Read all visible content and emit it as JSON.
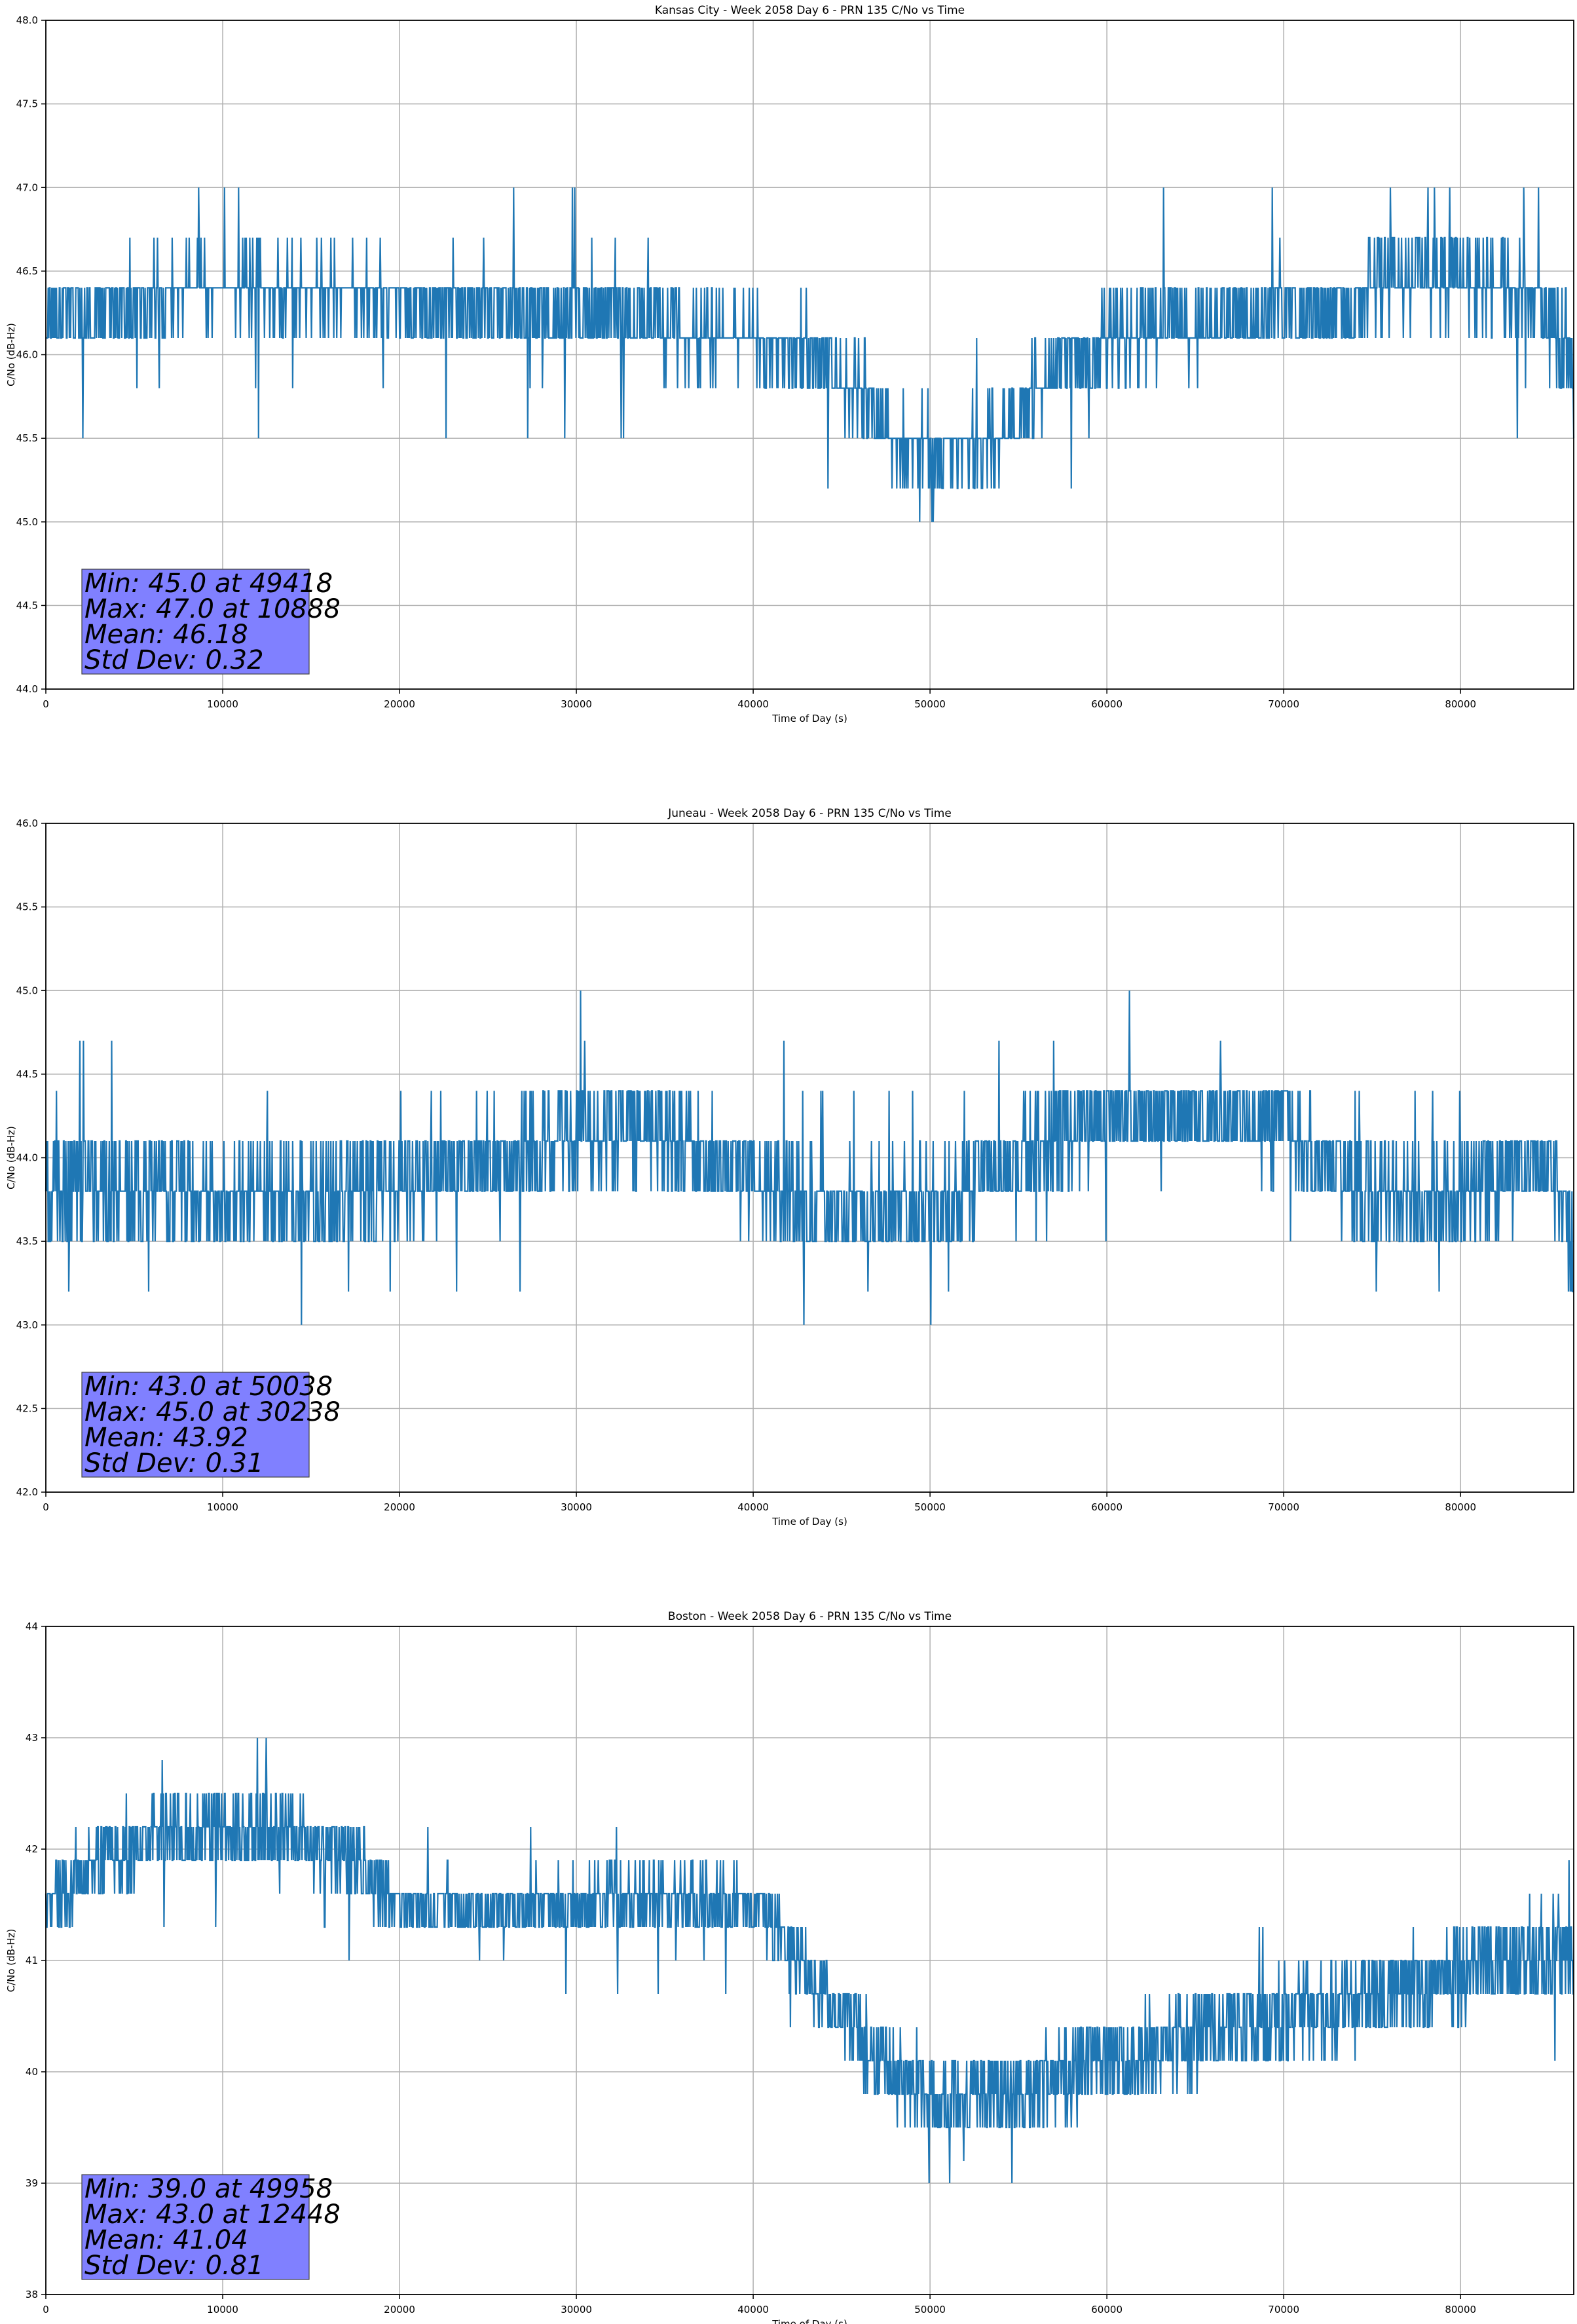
{
  "figure": {
    "colors": {
      "line": "#1f77b4",
      "grid": "#b0b0b0",
      "axes": "#000000",
      "stats_box": "#8080ff",
      "background": "#ffffff"
    }
  },
  "chart_data": [
    {
      "type": "line",
      "title": "Kansas City - Week 2058 Day 6 - PRN 135 C/No vs Time",
      "xlabel": "Time of Day (s)",
      "ylabel": "C/No (dB-Hz)",
      "xlim": [
        0,
        86400
      ],
      "ylim": [
        44.0,
        48.0
      ],
      "xticks": [
        0,
        10000,
        20000,
        30000,
        40000,
        50000,
        60000,
        70000,
        80000
      ],
      "xtick_labels": [
        "0",
        "10000",
        "20000",
        "30000",
        "40000",
        "50000",
        "60000",
        "70000",
        "80000"
      ],
      "yticks": [
        44.0,
        44.5,
        45.0,
        45.5,
        46.0,
        46.5,
        47.0,
        47.5,
        48.0
      ],
      "ytick_labels": [
        "44.0",
        "44.5",
        "45.0",
        "45.5",
        "46.0",
        "46.5",
        "47.0",
        "47.5",
        "48.0"
      ],
      "grid": true,
      "quantization": 0.3,
      "series": [
        {
          "x": [
            0,
            3000,
            8000,
            15000,
            20000,
            25000,
            30000,
            35000,
            40000,
            43000,
            46000,
            48000,
            50000,
            52000,
            54000,
            56000,
            58000,
            60000,
            65000,
            70000,
            73000,
            76000,
            80000,
            84000,
            86000,
            86400
          ],
          "y": [
            46.15,
            46.3,
            46.4,
            46.4,
            46.35,
            46.3,
            46.2,
            46.15,
            46.1,
            46.05,
            45.8,
            45.5,
            45.45,
            45.45,
            45.5,
            45.8,
            46.0,
            46.1,
            46.15,
            46.2,
            46.3,
            46.45,
            46.45,
            46.35,
            46.0,
            45.7
          ],
          "spread": [
            0.15,
            0.15,
            0.15,
            0.15,
            0.15,
            0.15,
            0.15,
            0.15,
            0.15,
            0.15,
            0.2,
            0.15,
            0.15,
            0.15,
            0.15,
            0.2,
            0.15,
            0.15,
            0.15,
            0.15,
            0.15,
            0.15,
            0.15,
            0.15,
            0.2,
            0.2
          ]
        }
      ],
      "extremes": {
        "min": {
          "x": 49418,
          "y": 45.0
        },
        "max": {
          "x": 10888,
          "y": 47.0
        }
      },
      "annotation": [
        "Min: 45.0 at 49418",
        "Max: 47.0 at 10888",
        "Mean: 46.18",
        "Std Dev: 0.32"
      ]
    },
    {
      "type": "line",
      "title": "Juneau - Week 2058 Day 6 - PRN 135 C/No vs Time",
      "xlabel": "Time of Day (s)",
      "ylabel": "C/No (dB-Hz)",
      "xlim": [
        0,
        86400
      ],
      "ylim": [
        42.0,
        46.0
      ],
      "xticks": [
        0,
        10000,
        20000,
        30000,
        40000,
        50000,
        60000,
        70000,
        80000
      ],
      "xtick_labels": [
        "0",
        "10000",
        "20000",
        "30000",
        "40000",
        "50000",
        "60000",
        "70000",
        "80000"
      ],
      "yticks": [
        42.0,
        42.5,
        43.0,
        43.5,
        44.0,
        44.5,
        45.0,
        45.5,
        46.0
      ],
      "ytick_labels": [
        "42.0",
        "42.5",
        "43.0",
        "43.5",
        "44.0",
        "44.5",
        "45.0",
        "45.5",
        "46.0"
      ],
      "grid": true,
      "quantization": 0.3,
      "series": [
        {
          "x": [
            0,
            5000,
            10000,
            15000,
            20000,
            25000,
            30000,
            35000,
            40000,
            45000,
            50000,
            55000,
            60000,
            65000,
            70000,
            74000,
            78000,
            82000,
            85000,
            86400
          ],
          "y": [
            43.8,
            43.85,
            43.75,
            43.75,
            43.85,
            44.0,
            44.15,
            44.15,
            43.85,
            43.7,
            43.7,
            44.0,
            44.25,
            44.25,
            44.2,
            43.8,
            43.7,
            43.85,
            44.0,
            43.4
          ],
          "spread": [
            0.2,
            0.2,
            0.2,
            0.2,
            0.2,
            0.2,
            0.2,
            0.2,
            0.2,
            0.2,
            0.2,
            0.2,
            0.2,
            0.2,
            0.2,
            0.2,
            0.2,
            0.2,
            0.2,
            0.2
          ]
        }
      ],
      "extremes": {
        "min": {
          "x": 50038,
          "y": 43.0
        },
        "max": {
          "x": 30238,
          "y": 45.0
        }
      },
      "annotation": [
        "Min: 43.0 at 50038",
        "Max: 45.0 at 30238",
        "Mean: 43.92",
        "Std Dev: 0.31"
      ]
    },
    {
      "type": "line",
      "title": "Boston - Week 2058 Day 6 - PRN 135 C/No vs Time",
      "xlabel": "Time of Day (s)",
      "ylabel": "C/No (dB-Hz)",
      "xlim": [
        0,
        86400
      ],
      "ylim": [
        38,
        44
      ],
      "xticks": [
        0,
        10000,
        20000,
        30000,
        40000,
        50000,
        60000,
        70000,
        80000
      ],
      "xtick_labels": [
        "0",
        "10000",
        "20000",
        "30000",
        "40000",
        "50000",
        "60000",
        "70000",
        "80000"
      ],
      "yticks": [
        38,
        39,
        40,
        41,
        42,
        43,
        44
      ],
      "ytick_labels": [
        "38",
        "39",
        "40",
        "41",
        "42",
        "43",
        "44"
      ],
      "grid": true,
      "quantization": 0.3,
      "series": [
        {
          "x": [
            0,
            3000,
            6000,
            10000,
            14000,
            18000,
            20000,
            25000,
            30000,
            35000,
            40000,
            42000,
            44000,
            46000,
            48000,
            50000,
            54000,
            58000,
            62000,
            66000,
            70000,
            74000,
            78000,
            82000,
            86000,
            86400
          ],
          "y": [
            41.5,
            41.85,
            42.1,
            42.2,
            42.15,
            41.8,
            41.5,
            41.45,
            41.5,
            41.55,
            41.5,
            41.1,
            40.7,
            40.3,
            40.0,
            39.7,
            39.75,
            40.0,
            40.2,
            40.35,
            40.45,
            40.6,
            40.8,
            41.0,
            41.1,
            40.8
          ],
          "spread": [
            0.2,
            0.25,
            0.25,
            0.25,
            0.25,
            0.25,
            0.15,
            0.15,
            0.2,
            0.2,
            0.2,
            0.2,
            0.2,
            0.25,
            0.25,
            0.25,
            0.25,
            0.3,
            0.3,
            0.3,
            0.3,
            0.3,
            0.3,
            0.3,
            0.3,
            0.3
          ]
        }
      ],
      "extremes": {
        "min": {
          "x": 49958,
          "y": 39.0
        },
        "max": {
          "x": 12448,
          "y": 43.0
        }
      },
      "annotation": [
        "Min: 39.0 at 49958",
        "Max: 43.0 at 12448",
        "Mean: 41.04",
        "Std Dev: 0.81"
      ]
    }
  ]
}
